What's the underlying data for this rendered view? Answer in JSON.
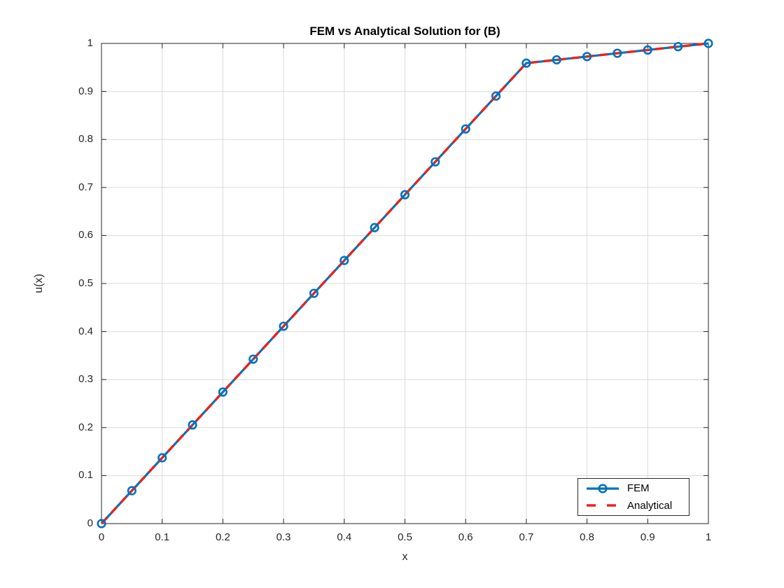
{
  "chart_data": {
    "type": "line",
    "title": "FEM vs Analytical Solution for (B)",
    "xlabel": "x",
    "ylabel": "u(x)",
    "xlim": [
      0,
      1
    ],
    "ylim": [
      0,
      1
    ],
    "grid": true,
    "legend_position": "southeast",
    "xticks": {
      "values": [
        0,
        0.1,
        0.2,
        0.3,
        0.4,
        0.5,
        0.6,
        0.7,
        0.8,
        0.9,
        1
      ],
      "labels": [
        "0",
        "0.1",
        "0.2",
        "0.3",
        "0.4",
        "0.5",
        "0.6",
        "0.7",
        "0.8",
        "0.9",
        "1"
      ]
    },
    "yticks": {
      "values": [
        0,
        0.1,
        0.2,
        0.3,
        0.4,
        0.5,
        0.6,
        0.7,
        0.8,
        0.9,
        1
      ],
      "labels": [
        "0",
        "0.1",
        "0.2",
        "0.3",
        "0.4",
        "0.5",
        "0.6",
        "0.7",
        "0.8",
        "0.9",
        "1"
      ]
    },
    "x": [
      0,
      0.05,
      0.1,
      0.15,
      0.2,
      0.25,
      0.3,
      0.35,
      0.4,
      0.45,
      0.5,
      0.55,
      0.6,
      0.65,
      0.7,
      0.75,
      0.8,
      0.85,
      0.9,
      0.95,
      1
    ],
    "series": [
      {
        "name": "FEM",
        "color": "#0072bd",
        "line_style": "solid",
        "marker": "circle",
        "values": [
          0,
          0.0685,
          0.137,
          0.2055,
          0.274,
          0.3425,
          0.411,
          0.4795,
          0.5479,
          0.6164,
          0.6849,
          0.7534,
          0.8219,
          0.8904,
          0.9589,
          0.9658,
          0.9726,
          0.9795,
          0.9863,
          0.9932,
          1
        ]
      },
      {
        "name": "Analytical",
        "color": "#e8231e",
        "line_style": "dashed",
        "marker": "none",
        "values": [
          0,
          0.0685,
          0.137,
          0.2055,
          0.274,
          0.3425,
          0.411,
          0.4795,
          0.5479,
          0.6164,
          0.6849,
          0.7534,
          0.8219,
          0.8904,
          0.9589,
          0.9658,
          0.9726,
          0.9795,
          0.9863,
          0.9932,
          1
        ]
      }
    ],
    "colors": {
      "axis": "#262626",
      "grid": "#dadada",
      "tick_text": "#262626",
      "title_text": "#000000"
    }
  }
}
